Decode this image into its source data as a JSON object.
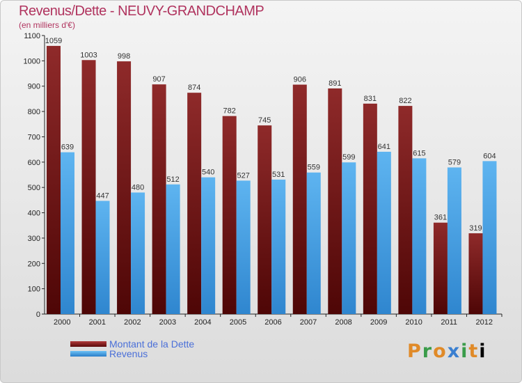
{
  "chart_data": {
    "type": "bar",
    "title": "Revenus/Dette - NEUVY-GRANDCHAMP",
    "subtitle": "(en milliers d'€)",
    "categories": [
      "2000",
      "2001",
      "2002",
      "2003",
      "2004",
      "2005",
      "2006",
      "2007",
      "2008",
      "2009",
      "2010",
      "2011",
      "2012"
    ],
    "series": [
      {
        "name": "Montant de la Dette",
        "color": "#7a1616",
        "values": [
          1059,
          1003,
          998,
          907,
          874,
          782,
          745,
          906,
          891,
          831,
          822,
          361,
          319
        ]
      },
      {
        "name": "Revenus",
        "color": "#4a9fe0",
        "values": [
          639,
          447,
          480,
          512,
          540,
          527,
          531,
          559,
          599,
          641,
          615,
          579,
          604
        ]
      }
    ],
    "ylim": [
      0,
      1100
    ],
    "yticks": [
      0,
      100,
      200,
      300,
      400,
      500,
      600,
      700,
      800,
      900,
      1000,
      1100
    ],
    "grid": false,
    "legend_position": "bottom-left"
  },
  "logo": {
    "letters": [
      "P",
      "r",
      "o",
      "x",
      "i",
      "t",
      "i"
    ]
  }
}
